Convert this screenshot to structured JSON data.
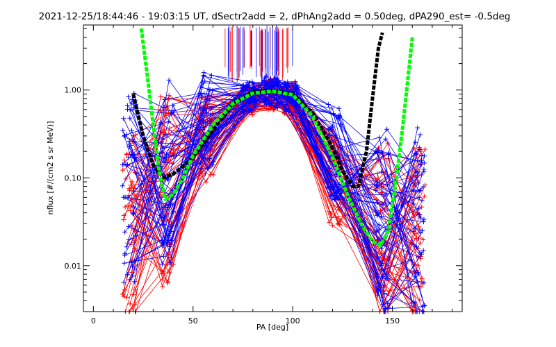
{
  "chart_data": {
    "type": "line",
    "title": "2021-12-25/18:44:46 - 19:03:15 UT, dSectr2add = 2, dPhAng2add = 0.50deg, dPA290_est=  -0.5deg",
    "xlabel": "PA [deg]",
    "ylabel": "nflux [#/(cm2 s sr MeV)]",
    "xlim": [
      -5,
      185
    ],
    "ylim": [
      0.003,
      5.5
    ],
    "yscale": "log",
    "grid": false,
    "xticks": [
      0,
      50,
      100,
      150
    ],
    "xtick_labels": [
      "0",
      "50",
      "100",
      "150"
    ],
    "yticks": [
      0.01,
      0.1,
      1.0
    ],
    "ytick_labels": [
      "0.01",
      "0.10",
      "1.00"
    ],
    "colors": {
      "red_series": "#ff0000",
      "blue_series": "#0000ff",
      "black_fit": "#000000",
      "green_fit": "#00ff00"
    },
    "series": [
      {
        "color": "#ff0000",
        "marker": "plus",
        "pa_bins": [
          18,
          37,
          57,
          78,
          89,
          99,
          121,
          145,
          163
        ],
        "values": [
          0.03,
          0.07,
          0.3,
          0.75,
          0.9,
          0.8,
          0.1,
          0.02,
          0.02
        ]
      },
      {
        "color": "#0000ff",
        "marker": "plus",
        "pa_bins": [
          18,
          37,
          57,
          78,
          89,
          99,
          121,
          145,
          163
        ],
        "values": [
          0.08,
          0.12,
          0.45,
          0.85,
          0.95,
          0.85,
          0.2,
          0.03,
          0.03
        ]
      },
      {
        "color": "#000000",
        "style": "dashed-thick",
        "x": [
          20,
          25,
          30,
          35,
          40,
          50,
          60,
          70,
          80,
          90,
          100,
          110,
          120,
          125,
          130,
          133,
          137,
          140,
          143,
          145
        ],
        "values": [
          0.9,
          0.3,
          0.14,
          0.1,
          0.11,
          0.17,
          0.35,
          0.7,
          0.95,
          0.98,
          0.9,
          0.55,
          0.22,
          0.12,
          0.08,
          0.08,
          0.2,
          0.8,
          3.0,
          4.5
        ]
      },
      {
        "color": "#00ff00",
        "style": "dashed-thick",
        "x": [
          24,
          27,
          30,
          33,
          36,
          40,
          45,
          50,
          60,
          70,
          80,
          90,
          100,
          110,
          120,
          128,
          135,
          140,
          144,
          148,
          152,
          155,
          158,
          160
        ],
        "values": [
          5.0,
          1.5,
          0.4,
          0.12,
          0.057,
          0.065,
          0.1,
          0.18,
          0.4,
          0.7,
          0.92,
          0.97,
          0.88,
          0.5,
          0.17,
          0.06,
          0.028,
          0.019,
          0.017,
          0.025,
          0.1,
          0.35,
          1.5,
          4.0
        ]
      }
    ]
  }
}
